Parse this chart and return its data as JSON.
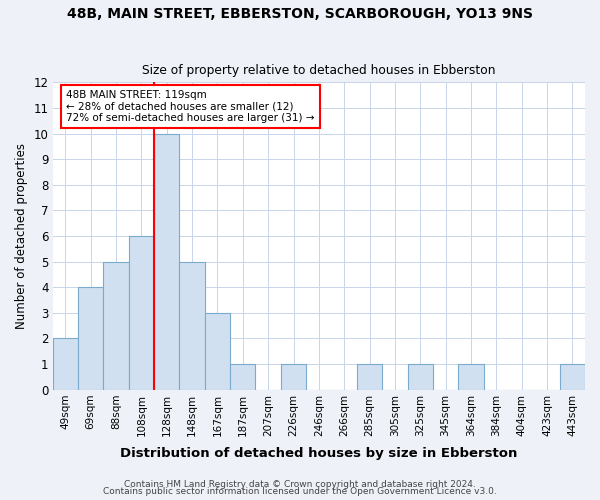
{
  "title1": "48B, MAIN STREET, EBBERSTON, SCARBOROUGH, YO13 9NS",
  "title2": "Size of property relative to detached houses in Ebberston",
  "xlabel": "Distribution of detached houses by size in Ebberston",
  "ylabel": "Number of detached properties",
  "categories": [
    "49sqm",
    "69sqm",
    "88sqm",
    "108sqm",
    "128sqm",
    "148sqm",
    "167sqm",
    "187sqm",
    "207sqm",
    "226sqm",
    "246sqm",
    "266sqm",
    "285sqm",
    "305sqm",
    "325sqm",
    "345sqm",
    "364sqm",
    "384sqm",
    "404sqm",
    "423sqm",
    "443sqm"
  ],
  "values": [
    2,
    4,
    5,
    6,
    10,
    5,
    3,
    1,
    0,
    1,
    0,
    0,
    1,
    0,
    1,
    0,
    1,
    0,
    0,
    0,
    1
  ],
  "bar_color": "#d0e0f0",
  "bar_edge_color": "#7aabcc",
  "red_line_index": 4,
  "annotation_line1": "48B MAIN STREET: 119sqm",
  "annotation_line2": "← 28% of detached houses are smaller (12)",
  "annotation_line3": "72% of semi-detached houses are larger (31) →",
  "ylim": [
    0,
    12
  ],
  "yticks": [
    0,
    1,
    2,
    3,
    4,
    5,
    6,
    7,
    8,
    9,
    10,
    11,
    12
  ],
  "footer1": "Contains HM Land Registry data © Crown copyright and database right 2024.",
  "footer2": "Contains public sector information licensed under the Open Government Licence v3.0.",
  "bg_color": "#eef2f8",
  "plot_bg_color": "#ffffff",
  "grid_color": "#c8d4e8"
}
